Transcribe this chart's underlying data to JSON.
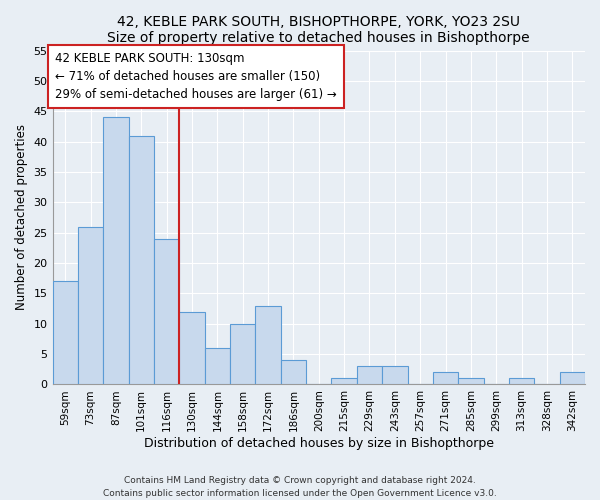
{
  "title": "42, KEBLE PARK SOUTH, BISHOPTHORPE, YORK, YO23 2SU",
  "subtitle": "Size of property relative to detached houses in Bishopthorpe",
  "xlabel": "Distribution of detached houses by size in Bishopthorpe",
  "ylabel": "Number of detached properties",
  "bin_labels": [
    "59sqm",
    "73sqm",
    "87sqm",
    "101sqm",
    "116sqm",
    "130sqm",
    "144sqm",
    "158sqm",
    "172sqm",
    "186sqm",
    "200sqm",
    "215sqm",
    "229sqm",
    "243sqm",
    "257sqm",
    "271sqm",
    "285sqm",
    "299sqm",
    "313sqm",
    "328sqm",
    "342sqm"
  ],
  "bar_heights": [
    17,
    26,
    44,
    41,
    24,
    12,
    6,
    10,
    13,
    4,
    0,
    1,
    3,
    3,
    0,
    2,
    1,
    0,
    1,
    0,
    2
  ],
  "bar_color": "#c8d9ed",
  "bar_edge_color": "#5b9bd5",
  "property_line_index": 5,
  "annotation_title": "42 KEBLE PARK SOUTH: 130sqm",
  "annotation_line1": "← 71% of detached houses are smaller (150)",
  "annotation_line2": "29% of semi-detached houses are larger (61) →",
  "annotation_box_color": "#ffffff",
  "annotation_box_edge_color": "#cc2222",
  "ylim": [
    0,
    55
  ],
  "yticks": [
    0,
    5,
    10,
    15,
    20,
    25,
    30,
    35,
    40,
    45,
    50,
    55
  ],
  "property_line_color": "#cc2222",
  "footer_line1": "Contains HM Land Registry data © Crown copyright and database right 2024.",
  "footer_line2": "Contains public sector information licensed under the Open Government Licence v3.0.",
  "background_color": "#e8eef4",
  "plot_bg_color": "#e8eef4",
  "grid_color": "#ffffff"
}
